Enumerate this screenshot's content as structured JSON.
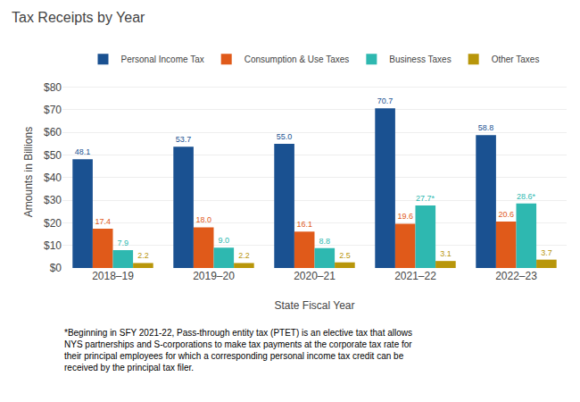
{
  "chart_data": {
    "type": "bar",
    "title": "Tax Receipts by Year",
    "xlabel": "State Fiscal Year",
    "ylabel": "Amounts in Billions",
    "categories": [
      "2018–19",
      "2019–20",
      "2020–21",
      "2021–22",
      "2022–23"
    ],
    "series": [
      {
        "name": "Personal Income Tax",
        "color": "#1a5191",
        "values": [
          48.1,
          53.7,
          55.0,
          70.7,
          58.8
        ],
        "value_labels": [
          "48.1",
          "53.7",
          "55.0",
          "70.7",
          "58.8"
        ]
      },
      {
        "name": "Consumption & Use Taxes",
        "color": "#e05a1a",
        "values": [
          17.4,
          18.0,
          16.1,
          19.6,
          20.6
        ],
        "value_labels": [
          "17.4",
          "18.0",
          "16.1",
          "19.6",
          "20.6"
        ]
      },
      {
        "name": "Business Taxes",
        "color": "#2eb8b0",
        "values": [
          7.9,
          9.0,
          8.8,
          27.7,
          28.6
        ],
        "value_labels": [
          "7.9",
          "9.0",
          "8.8",
          "27.7*",
          "28.6*"
        ]
      },
      {
        "name": "Other Taxes",
        "color": "#b8960a",
        "values": [
          2.2,
          2.2,
          2.5,
          3.1,
          3.7
        ],
        "value_labels": [
          "2.2",
          "2.2",
          "2.5",
          "3.1",
          "3.7"
        ]
      }
    ],
    "ylim": [
      0,
      85
    ],
    "yticks": [
      {
        "value": 0,
        "label": "$0"
      },
      {
        "value": 10,
        "label": "$10"
      },
      {
        "value": 20,
        "label": "$20"
      },
      {
        "value": 30,
        "label": "$30"
      },
      {
        "value": 40,
        "label": "$40"
      },
      {
        "value": 50,
        "label": "$50"
      },
      {
        "value": 60,
        "label": "$60"
      },
      {
        "value": 70,
        "label": "$70"
      },
      {
        "value": 80,
        "label": "$80"
      }
    ],
    "grid": true,
    "legend": "top",
    "data_labels": true,
    "annotations": [
      "*Beginning in SFY 2021-22, Pass-through entity tax (PTET) is an elective tax that allows\nNYS partnerships and S-corporations to make tax payments at the corporate tax rate for\ntheir principal employees for which a corresponding personal income tax credit can be\nreceived by the principal tax filer."
    ]
  }
}
